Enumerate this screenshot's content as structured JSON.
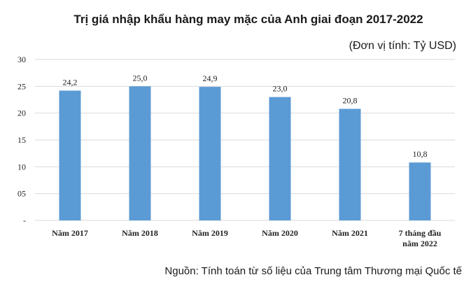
{
  "chart_data": {
    "type": "bar",
    "title": "Trị giá nhập khẩu hàng may mặc của Anh giai đoạn 2017-2022",
    "unit_label": "(Đơn vị tính: Tỷ USD)",
    "source": "Nguồn: Tính toán từ số liệu của Trung tâm Thương mại Quốc tế",
    "categories": [
      [
        "Năm 2017"
      ],
      [
        "Năm 2018"
      ],
      [
        "Năm 2019"
      ],
      [
        "Năm 2020"
      ],
      [
        "Năm 2021"
      ],
      [
        "7 tháng đầu",
        "năm  2022"
      ]
    ],
    "values": [
      24.2,
      25.0,
      24.9,
      23.0,
      20.8,
      10.8
    ],
    "data_labels": [
      "24,2",
      "25,0",
      "24,9",
      "23,0",
      "20,8",
      "10,8"
    ],
    "y_ticks": [
      "-",
      "05",
      "10",
      "15",
      "20",
      "25",
      "30"
    ],
    "ylim": [
      0,
      30
    ],
    "grid": true,
    "colors": {
      "bar": "#5b9bd5"
    }
  }
}
